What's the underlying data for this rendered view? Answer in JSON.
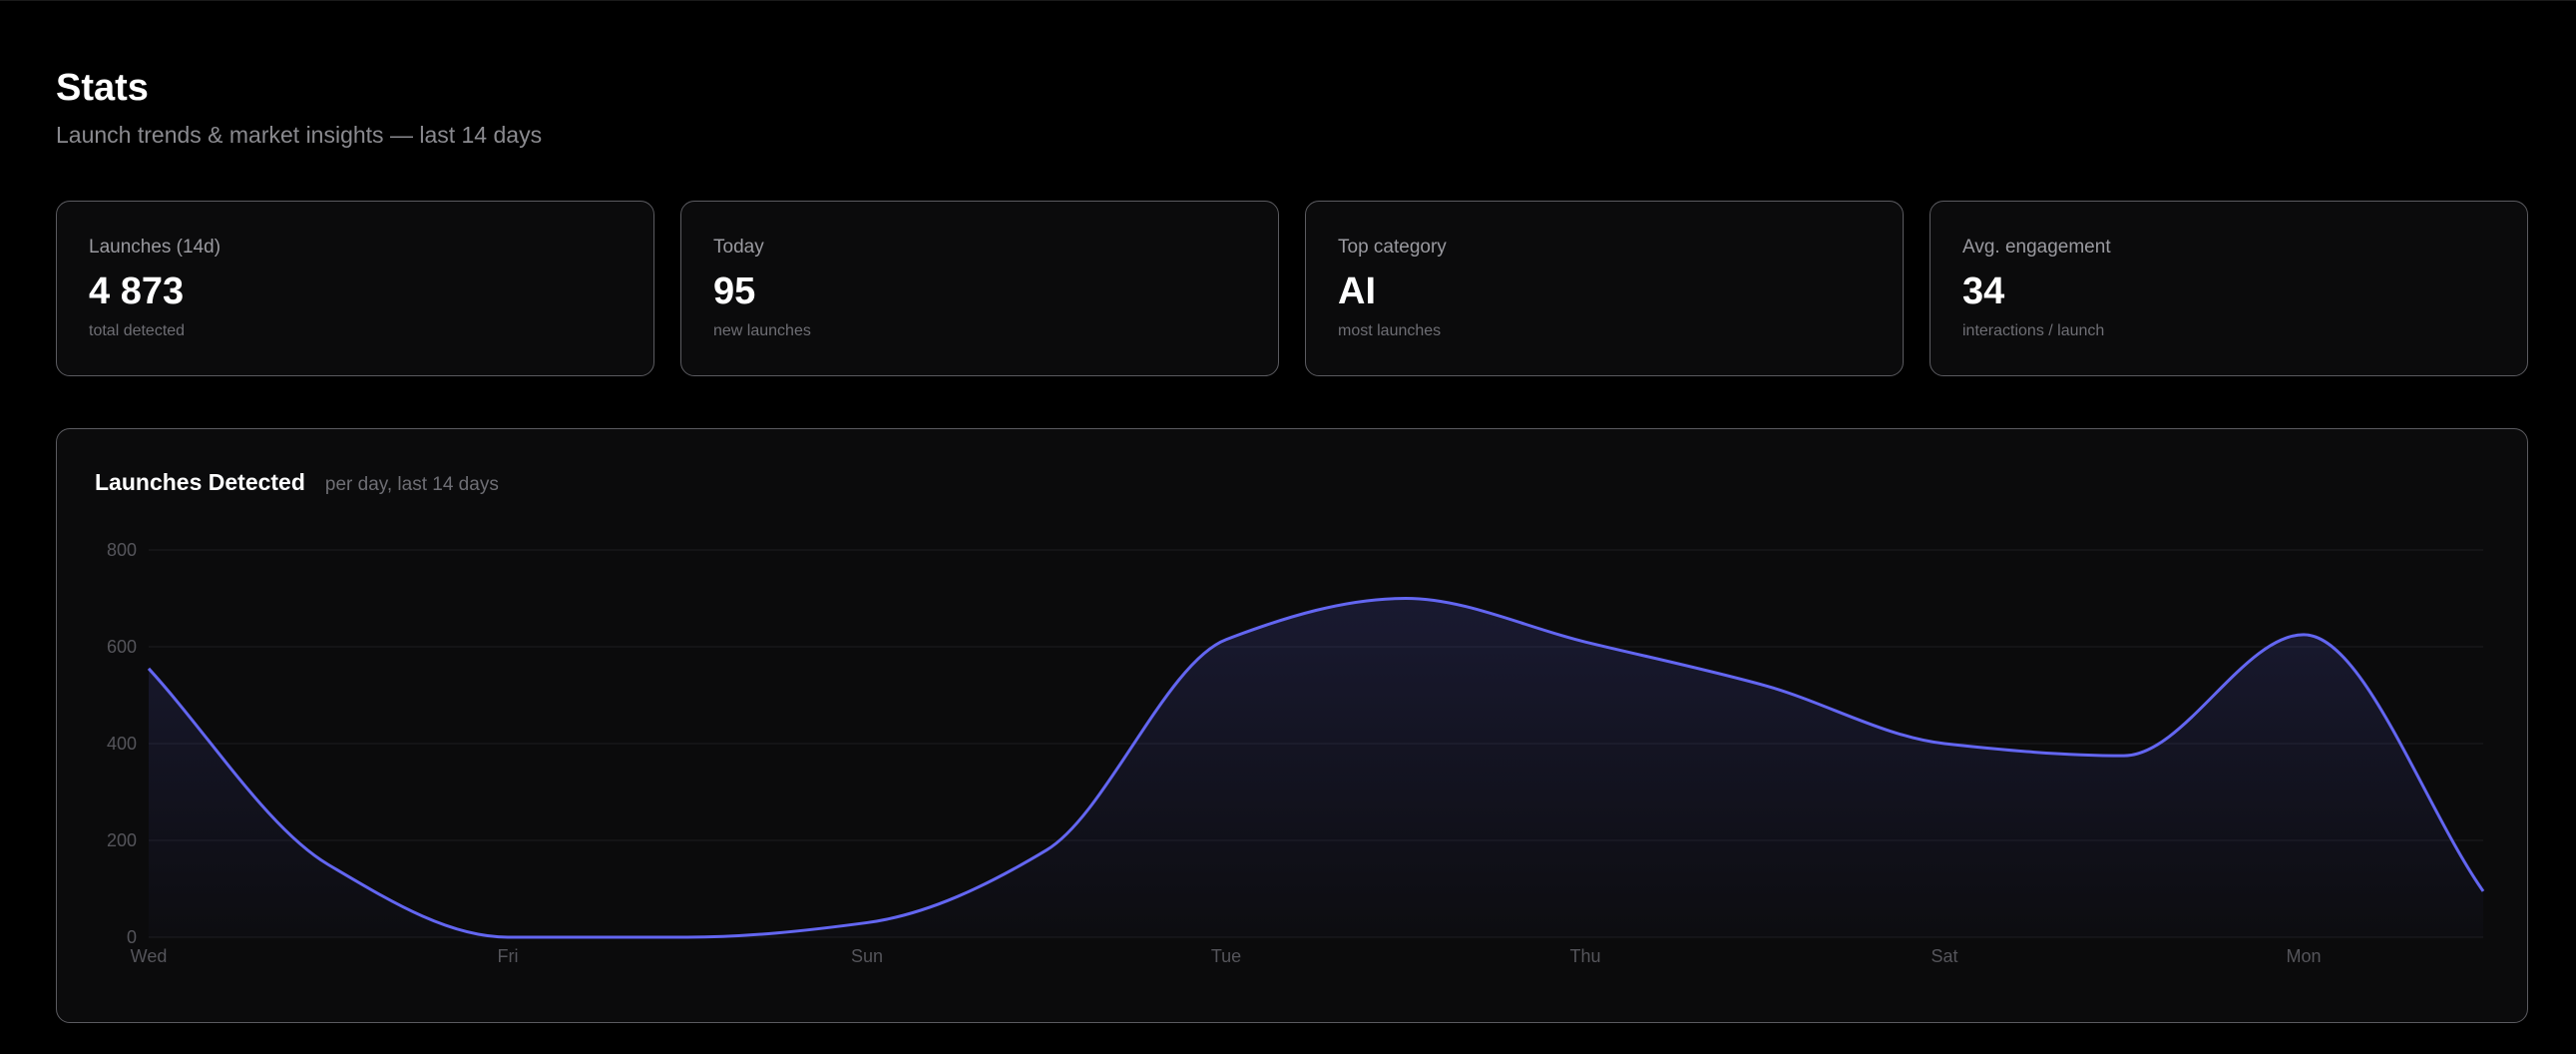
{
  "header": {
    "title": "Stats",
    "subtitle": "Launch trends & market insights — last 14 days"
  },
  "stats": [
    {
      "label": "Launches (14d)",
      "value": "4 873",
      "sub": "total detected"
    },
    {
      "label": "Today",
      "value": "95",
      "sub": "new launches"
    },
    {
      "label": "Top category",
      "value": "AI",
      "sub": "most launches"
    },
    {
      "label": "Avg. engagement",
      "value": "34",
      "sub": "interactions / launch"
    }
  ],
  "chart": {
    "title": "Launches Detected",
    "subtitle": "per day, last 14 days"
  },
  "colors": {
    "accent": "#6366f1",
    "background": "#000000",
    "card": "#0b0b0c",
    "border": "#5b5b60"
  },
  "chart_data": {
    "type": "area",
    "title": "Launches Detected",
    "subtitle": "per day, last 14 days",
    "x": [
      "Wed",
      "Thu",
      "Fri",
      "Sat",
      "Sun",
      "Mon",
      "Tue",
      "Wed",
      "Thu",
      "Fri",
      "Sat",
      "Sun",
      "Mon",
      "Tue"
    ],
    "x_tick_labels": [
      "Wed",
      "Fri",
      "Sun",
      "Tue",
      "Thu",
      "Sat",
      "Mon"
    ],
    "series": [
      {
        "values": [
          555,
          150,
          0,
          0,
          30,
          180,
          615,
          700,
          610,
          520,
          400,
          375,
          625,
          95
        ]
      }
    ],
    "ylim": [
      0,
      800
    ],
    "y_ticks": [
      0,
      200,
      400,
      600,
      800
    ],
    "grid": true,
    "legend": "none"
  }
}
